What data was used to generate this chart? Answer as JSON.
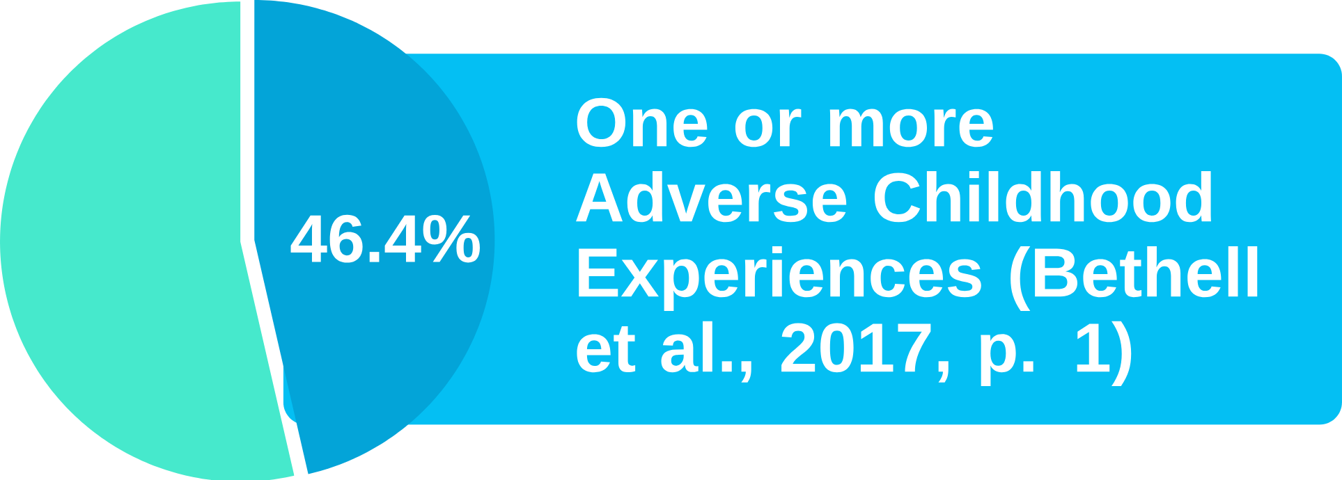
{
  "chart_data": {
    "type": "pie",
    "title": "One or more Adverse Childhood Experiences (Bethell et al., 2017, p. 1)",
    "categories": [
      null,
      null
    ],
    "values": [
      46.4,
      53.6
    ],
    "colors": [
      "#03a4d8",
      "#46e9cc"
    ],
    "value_labels": [
      "46.4%",
      null
    ]
  }
}
